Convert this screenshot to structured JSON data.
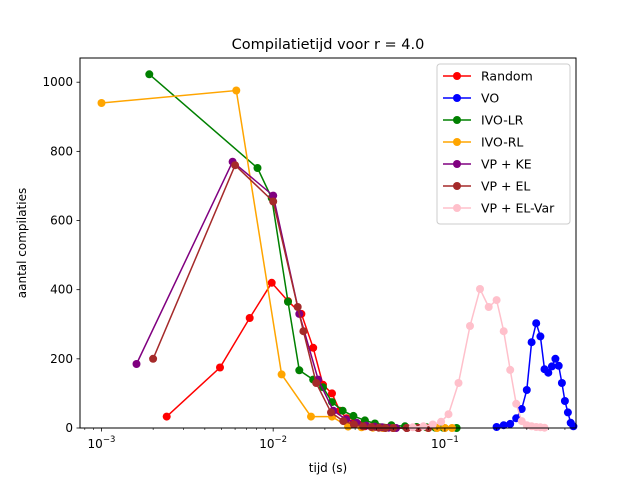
{
  "chart_data": {
    "type": "line",
    "title": "Compilatietijd voor r = 4.0",
    "xlabel": "tijd (s)",
    "ylabel": "aantal compilaties",
    "xscale": "log",
    "xlim": [
      0.00075,
      0.58
    ],
    "ylim": [
      0,
      1070
    ],
    "xticks": [
      {
        "value": 0.001,
        "base": "10",
        "exp": "−3"
      },
      {
        "value": 0.01,
        "base": "10",
        "exp": "−2"
      },
      {
        "value": 0.1,
        "base": "10",
        "exp": "−1"
      }
    ],
    "yticks": [
      0,
      200,
      400,
      600,
      800,
      1000
    ],
    "legend_position": "top-right",
    "grid": false,
    "series": [
      {
        "name": "Random",
        "color": "#ff0000",
        "points": [
          [
            0.0024,
            33
          ],
          [
            0.0049,
            175
          ],
          [
            0.0073,
            318
          ],
          [
            0.0098,
            420
          ],
          [
            0.0122,
            367
          ],
          [
            0.0146,
            330
          ],
          [
            0.0171,
            232
          ],
          [
            0.0195,
            125
          ],
          [
            0.022,
            100
          ],
          [
            0.0244,
            50
          ],
          [
            0.0268,
            28
          ],
          [
            0.0293,
            15
          ],
          [
            0.0317,
            10
          ],
          [
            0.0342,
            5
          ],
          [
            0.0391,
            3
          ],
          [
            0.044,
            1
          ],
          [
            0.05,
            0
          ],
          [
            0.06,
            0
          ],
          [
            0.07,
            0
          ]
        ]
      },
      {
        "name": "VO",
        "color": "#0000ff",
        "points": [
          [
            0.2,
            3
          ],
          [
            0.22,
            8
          ],
          [
            0.24,
            12
          ],
          [
            0.26,
            28
          ],
          [
            0.28,
            55
          ],
          [
            0.3,
            110
          ],
          [
            0.32,
            248
          ],
          [
            0.34,
            303
          ],
          [
            0.36,
            265
          ],
          [
            0.38,
            170
          ],
          [
            0.4,
            160
          ],
          [
            0.42,
            178
          ],
          [
            0.44,
            200
          ],
          [
            0.46,
            180
          ],
          [
            0.48,
            130
          ],
          [
            0.5,
            78
          ],
          [
            0.52,
            45
          ],
          [
            0.54,
            15
          ],
          [
            0.56,
            5
          ]
        ]
      },
      {
        "name": "IVO-LR",
        "color": "#008000",
        "points": [
          [
            0.0019,
            1023
          ],
          [
            0.0081,
            752
          ],
          [
            0.0098,
            665
          ],
          [
            0.0122,
            365
          ],
          [
            0.0142,
            167
          ],
          [
            0.0171,
            140
          ],
          [
            0.0195,
            118
          ],
          [
            0.022,
            75
          ],
          [
            0.0254,
            50
          ],
          [
            0.0293,
            35
          ],
          [
            0.0342,
            22
          ],
          [
            0.0391,
            13
          ],
          [
            0.0488,
            8
          ],
          [
            0.0586,
            5
          ],
          [
            0.0684,
            3
          ],
          [
            0.0781,
            2
          ],
          [
            0.0879,
            1
          ],
          [
            0.0977,
            1
          ],
          [
            0.117,
            0
          ]
        ]
      },
      {
        "name": "IVO-RL",
        "color": "#ffa500",
        "points": [
          [
            0.001,
            940
          ],
          [
            0.0061,
            976
          ],
          [
            0.0112,
            155
          ],
          [
            0.0166,
            33
          ],
          [
            0.022,
            33
          ],
          [
            0.0273,
            4
          ],
          [
            0.0327,
            2
          ],
          [
            0.0381,
            1
          ],
          [
            0.0435,
            0
          ],
          [
            0.05,
            0
          ],
          [
            0.06,
            0
          ],
          [
            0.07,
            0
          ],
          [
            0.08,
            0
          ],
          [
            0.09,
            0
          ],
          [
            0.1,
            0
          ],
          [
            0.11,
            0
          ]
        ]
      },
      {
        "name": "VP + KE",
        "color": "#800080",
        "points": [
          [
            0.0016,
            185
          ],
          [
            0.0058,
            770
          ],
          [
            0.01,
            672
          ],
          [
            0.0142,
            330
          ],
          [
            0.0183,
            140
          ],
          [
            0.0224,
            50
          ],
          [
            0.0266,
            25
          ],
          [
            0.0307,
            15
          ],
          [
            0.0348,
            7
          ],
          [
            0.039,
            4
          ],
          [
            0.0431,
            2
          ],
          [
            0.047,
            1
          ],
          [
            0.052,
            0
          ],
          [
            0.06,
            0
          ],
          [
            0.07,
            0
          ]
        ]
      },
      {
        "name": "VP + EL",
        "color": "#a52a2a",
        "points": [
          [
            0.002,
            200
          ],
          [
            0.006,
            760
          ],
          [
            0.01,
            655
          ],
          [
            0.0139,
            350
          ],
          [
            0.015,
            280
          ],
          [
            0.0178,
            130
          ],
          [
            0.0217,
            45
          ],
          [
            0.0256,
            20
          ],
          [
            0.0295,
            10
          ],
          [
            0.0334,
            5
          ],
          [
            0.0373,
            3
          ],
          [
            0.0412,
            1
          ],
          [
            0.045,
            0
          ],
          [
            0.05,
            0
          ],
          [
            0.06,
            0
          ],
          [
            0.07,
            0
          ],
          [
            0.08,
            0
          ]
        ]
      },
      {
        "name": "VP + EL-Var",
        "color": "#ffc0cb",
        "points": [
          [
            0.065,
            2
          ],
          [
            0.075,
            5
          ],
          [
            0.085,
            10
          ],
          [
            0.095,
            18
          ],
          [
            0.105,
            40
          ],
          [
            0.12,
            130
          ],
          [
            0.14,
            295
          ],
          [
            0.16,
            402
          ],
          [
            0.18,
            350
          ],
          [
            0.2,
            370
          ],
          [
            0.22,
            280
          ],
          [
            0.24,
            168
          ],
          [
            0.26,
            70
          ],
          [
            0.28,
            20
          ],
          [
            0.3,
            8
          ],
          [
            0.32,
            5
          ],
          [
            0.34,
            3
          ],
          [
            0.36,
            2
          ],
          [
            0.38,
            1
          ]
        ]
      }
    ]
  }
}
